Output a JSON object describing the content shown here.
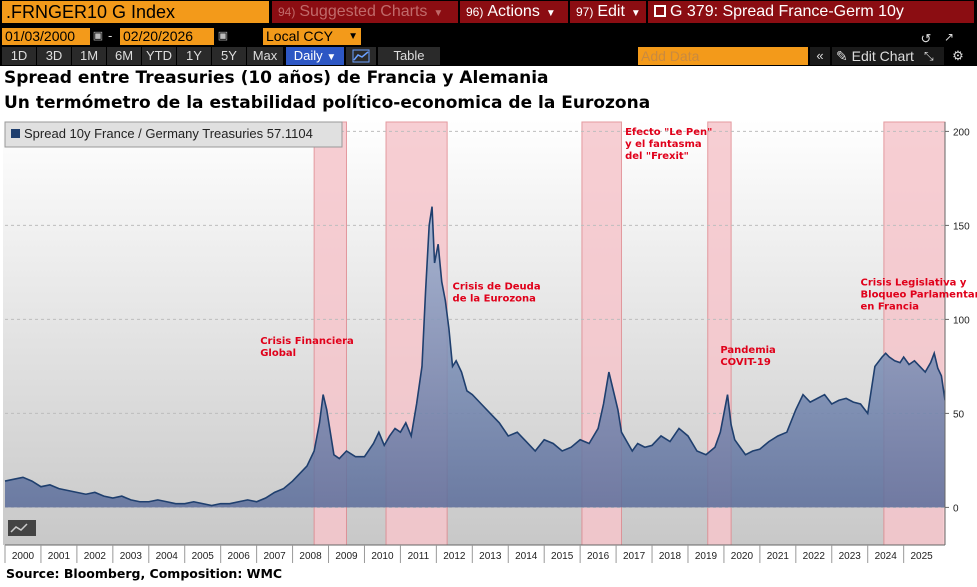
{
  "toolbar": {
    "ticker": ".FRNGER10 G Index",
    "suggested": {
      "num": "94)",
      "label": "Suggested Charts"
    },
    "actions": {
      "num": "96)",
      "label": "Actions"
    },
    "edit": {
      "num": "97)",
      "label": "Edit"
    },
    "window_title": "G 379: Spread France-Germ 10y"
  },
  "controls": {
    "start_date": "01/03/2000",
    "end_date": "02/20/2026",
    "separator": "-",
    "currency": "Local CCY",
    "ranges": [
      "1D",
      "3D",
      "1M",
      "6M",
      "YTD",
      "1Y",
      "5Y",
      "Max"
    ],
    "frequency": "Daily",
    "table_label": "Table",
    "add_data_placeholder": "Add Data",
    "edit_chart_label": "Edit Chart",
    "collapse_glyph": "«",
    "refresh_glyph": "↺",
    "settings_glyph": "⚙"
  },
  "titles": {
    "line1": "Spread entre Treasuries (10 años) de Francia y Alemania",
    "line2": "Un termómetro de la estabilidad político-economica de la Eurozona",
    "source": "Source: Bloomberg, Composition: WMC"
  },
  "chart_data": {
    "type": "area",
    "series_name": "Spread 10y France / Germany Treasuries",
    "last_value": "57.1104",
    "legend_label": "Spread 10y France / Germany Treasuries 57.1104",
    "ylim": [
      -20,
      205
    ],
    "yticks": [
      "0",
      "50",
      "100",
      "150",
      "200"
    ],
    "xlim": [
      2000.0,
      2026.15
    ],
    "xticks": [
      "2000",
      "2001",
      "2002",
      "2003",
      "2004",
      "2005",
      "2006",
      "2007",
      "2008",
      "2009",
      "2010",
      "2011",
      "2012",
      "2013",
      "2014",
      "2015",
      "2016",
      "2017",
      "2018",
      "2019",
      "2020",
      "2021",
      "2022",
      "2023",
      "2024",
      "2025"
    ],
    "x": [
      2000.0,
      2000.25,
      2000.5,
      2000.75,
      2001.0,
      2001.25,
      2001.5,
      2001.75,
      2002.0,
      2002.25,
      2002.5,
      2002.75,
      2003.0,
      2003.25,
      2003.5,
      2003.75,
      2004.0,
      2004.25,
      2004.5,
      2004.75,
      2005.0,
      2005.25,
      2005.5,
      2005.75,
      2006.0,
      2006.25,
      2006.5,
      2006.75,
      2007.0,
      2007.25,
      2007.5,
      2007.75,
      2008.0,
      2008.2,
      2008.4,
      2008.6,
      2008.75,
      2008.85,
      2008.95,
      2009.05,
      2009.15,
      2009.3,
      2009.5,
      2009.75,
      2010.0,
      2010.25,
      2010.4,
      2010.55,
      2010.7,
      2010.85,
      2011.0,
      2011.15,
      2011.3,
      2011.45,
      2011.6,
      2011.7,
      2011.8,
      2011.88,
      2011.95,
      2012.05,
      2012.15,
      2012.25,
      2012.35,
      2012.45,
      2012.55,
      2012.7,
      2012.85,
      2013.0,
      2013.25,
      2013.5,
      2013.75,
      2014.0,
      2014.25,
      2014.5,
      2014.75,
      2015.0,
      2015.25,
      2015.5,
      2015.75,
      2016.0,
      2016.25,
      2016.5,
      2016.65,
      2016.8,
      2016.95,
      2017.05,
      2017.15,
      2017.3,
      2017.45,
      2017.6,
      2017.8,
      2018.0,
      2018.25,
      2018.5,
      2018.75,
      2019.0,
      2019.25,
      2019.5,
      2019.75,
      2019.9,
      2020.0,
      2020.1,
      2020.2,
      2020.3,
      2020.45,
      2020.6,
      2020.8,
      2021.0,
      2021.25,
      2021.5,
      2021.75,
      2022.0,
      2022.2,
      2022.4,
      2022.6,
      2022.8,
      2023.0,
      2023.2,
      2023.4,
      2023.6,
      2023.8,
      2024.0,
      2024.2,
      2024.4,
      2024.5,
      2024.6,
      2024.75,
      2024.9,
      2025.0,
      2025.15,
      2025.3,
      2025.45,
      2025.6,
      2025.75,
      2025.85,
      2025.95,
      2026.05,
      2026.15
    ],
    "values": [
      14,
      15,
      16,
      14,
      11,
      12,
      10,
      9,
      8,
      7,
      8,
      6,
      5,
      6,
      4,
      3,
      3,
      4,
      3,
      2,
      2,
      3,
      2,
      1,
      2,
      2,
      3,
      4,
      3,
      5,
      8,
      10,
      14,
      18,
      22,
      30,
      45,
      60,
      52,
      40,
      28,
      26,
      30,
      27,
      27,
      34,
      40,
      33,
      38,
      42,
      40,
      45,
      38,
      55,
      75,
      115,
      150,
      160,
      130,
      140,
      120,
      110,
      95,
      75,
      78,
      72,
      62,
      60,
      55,
      50,
      45,
      38,
      40,
      35,
      30,
      36,
      34,
      30,
      32,
      36,
      34,
      42,
      55,
      72,
      60,
      52,
      40,
      35,
      30,
      34,
      32,
      33,
      38,
      35,
      42,
      38,
      30,
      28,
      32,
      40,
      50,
      60,
      44,
      36,
      32,
      28,
      30,
      31,
      35,
      38,
      40,
      52,
      60,
      56,
      58,
      60,
      55,
      57,
      58,
      56,
      55,
      50,
      75,
      80,
      82,
      80,
      78,
      77,
      80,
      76,
      78,
      75,
      72,
      77,
      82,
      74,
      70,
      57
    ],
    "shaded_periods": [
      {
        "label": "Crisis Financiera Global",
        "start": 2008.6,
        "end": 2009.5
      },
      {
        "label": "Crisis de Deuda de la Eurozona",
        "start": 2010.6,
        "end": 2012.3
      },
      {
        "label": "Efecto \"Le Pen\" y el fantasma del \"Frexit\"",
        "start": 2016.05,
        "end": 2017.15
      },
      {
        "label": "Pandemia COVIT-19",
        "start": 2019.55,
        "end": 2020.2
      },
      {
        "label": "Crisis Legislativa y Bloqueo Parlamentario en Francia",
        "start": 2024.45,
        "end": 2026.2
      }
    ],
    "annotations": [
      {
        "lines": [
          "Crisis Financiera",
          "Global"
        ],
        "x": 2007.1,
        "y": 87
      },
      {
        "lines": [
          "Crisis de Deuda",
          "de la Eurozona"
        ],
        "x": 2012.45,
        "y": 116
      },
      {
        "lines": [
          "Efecto \"Le Pen\"",
          "y el fantasma",
          "del \"Frexit\""
        ],
        "x": 2017.25,
        "y": 198
      },
      {
        "lines": [
          "Pandemia",
          "COVIT-19"
        ],
        "x": 2019.9,
        "y": 82
      },
      {
        "lines": [
          "Crisis Legislativa y",
          "Bloqueo Parlamentario",
          "en Francia"
        ],
        "x": 2023.8,
        "y": 118
      }
    ],
    "colors": {
      "line": "#1f3f6e",
      "fill_top": "#9ab0d0",
      "fill_bottom": "#5a6c9a",
      "shade": "#f6c6cc",
      "shade_edge": "#e0898f",
      "annotation": "#e0001a"
    }
  }
}
